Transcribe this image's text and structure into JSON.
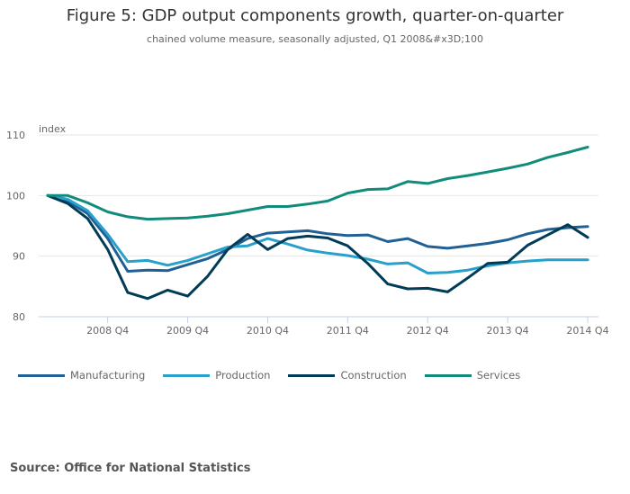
{
  "chart_data": {
    "type": "line",
    "title": "Figure 5: GDP output components growth, quarter-on-quarter",
    "subtitle": "chained volume measure, seasonally adjusted, Q1 2008&#x3D;100",
    "ylabel": "index",
    "xlabel": "",
    "ylim": [
      80,
      110
    ],
    "yticks": [
      80,
      90,
      100,
      110
    ],
    "grid": true,
    "legend_position": "bottom-left",
    "x": [
      "2008 Q1",
      "2008 Q2",
      "2008 Q3",
      "2008 Q4",
      "2009 Q1",
      "2009 Q2",
      "2009 Q3",
      "2009 Q4",
      "2010 Q1",
      "2010 Q2",
      "2010 Q3",
      "2010 Q4",
      "2011 Q1",
      "2011 Q2",
      "2011 Q3",
      "2011 Q4",
      "2012 Q1",
      "2012 Q2",
      "2012 Q3",
      "2012 Q4",
      "2013 Q1",
      "2013 Q2",
      "2013 Q3",
      "2013 Q4",
      "2014 Q1",
      "2014 Q2",
      "2014 Q3",
      "2014 Q4"
    ],
    "xtick_labels": [
      "2008 Q4",
      "2009 Q4",
      "2010 Q4",
      "2011 Q4",
      "2012 Q4",
      "2013 Q4",
      "2014 Q4"
    ],
    "series": [
      {
        "name": "Manufacturing",
        "color": "#206095",
        "values": [
          100,
          99.1,
          97.0,
          92.9,
          87.5,
          87.7,
          87.6,
          88.6,
          89.6,
          91.1,
          92.9,
          93.8,
          94.0,
          94.2,
          93.7,
          93.4,
          93.5,
          92.4,
          92.9,
          91.6,
          91.3,
          91.7,
          92.1,
          92.7,
          93.7,
          94.4,
          94.7,
          94.9
        ]
      },
      {
        "name": "Production",
        "color": "#27a0cc",
        "values": [
          100,
          99.4,
          97.5,
          93.6,
          89.1,
          89.3,
          88.5,
          89.3,
          90.4,
          91.5,
          91.7,
          92.9,
          92.0,
          91.0,
          90.5,
          90.1,
          89.5,
          88.7,
          88.9,
          87.2,
          87.3,
          87.7,
          88.4,
          88.9,
          89.2,
          89.4,
          89.4,
          89.4
        ]
      },
      {
        "name": "Construction",
        "color": "#003c57",
        "values": [
          100,
          98.7,
          96.2,
          91.1,
          84.0,
          83.0,
          84.4,
          83.4,
          86.7,
          91.1,
          93.6,
          91.1,
          92.9,
          93.3,
          93.0,
          91.7,
          88.8,
          85.4,
          84.6,
          84.7,
          84.1,
          86.4,
          88.8,
          89.0,
          91.8,
          93.5,
          95.2,
          93.1
        ]
      },
      {
        "name": "Services",
        "color": "#118c7b",
        "values": [
          100,
          100,
          98.8,
          97.3,
          96.5,
          96.1,
          96.2,
          96.3,
          96.6,
          97.0,
          97.6,
          98.2,
          98.2,
          98.6,
          99.1,
          100.4,
          101.0,
          101.1,
          102.3,
          102.0,
          102.8,
          103.3,
          103.9,
          104.5,
          105.2,
          106.3,
          107.1,
          108.0
        ]
      }
    ]
  },
  "source": "Source: Office for National Statistics"
}
